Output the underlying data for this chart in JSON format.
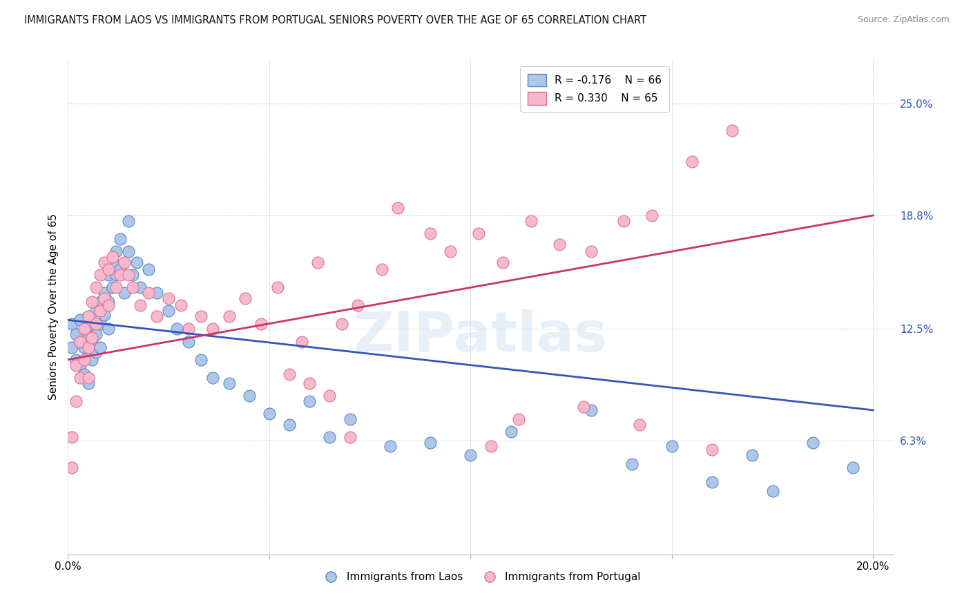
{
  "title": "IMMIGRANTS FROM LAOS VS IMMIGRANTS FROM PORTUGAL SENIORS POVERTY OVER THE AGE OF 65 CORRELATION CHART",
  "source": "Source: ZipAtlas.com",
  "ylabel": "Seniors Poverty Over the Age of 65",
  "ytick_labels": [
    "6.3%",
    "12.5%",
    "18.8%",
    "25.0%"
  ],
  "ytick_values": [
    0.063,
    0.125,
    0.188,
    0.25
  ],
  "xlim": [
    0.0,
    0.205
  ],
  "ylim": [
    0.0,
    0.275
  ],
  "legend_blue_r": "R = -0.176",
  "legend_blue_n": "N = 66",
  "legend_pink_r": "R = 0.330",
  "legend_pink_n": "N = 65",
  "label_blue": "Immigrants from Laos",
  "label_pink": "Immigrants from Portugal",
  "blue_color": "#aec6e8",
  "blue_edge": "#5588cc",
  "pink_color": "#f5b8cc",
  "pink_edge": "#e07090",
  "blue_line_color": "#3355bb",
  "pink_line_color": "#cc3366",
  "watermark": "ZIPatlas",
  "blue_points_x": [
    0.001,
    0.001,
    0.002,
    0.002,
    0.003,
    0.003,
    0.003,
    0.004,
    0.004,
    0.004,
    0.005,
    0.005,
    0.005,
    0.005,
    0.006,
    0.006,
    0.006,
    0.007,
    0.007,
    0.007,
    0.008,
    0.008,
    0.008,
    0.009,
    0.009,
    0.01,
    0.01,
    0.01,
    0.011,
    0.011,
    0.012,
    0.012,
    0.013,
    0.013,
    0.014,
    0.015,
    0.015,
    0.016,
    0.017,
    0.018,
    0.02,
    0.022,
    0.025,
    0.027,
    0.03,
    0.033,
    0.036,
    0.04,
    0.045,
    0.05,
    0.055,
    0.06,
    0.065,
    0.07,
    0.08,
    0.09,
    0.1,
    0.11,
    0.13,
    0.14,
    0.15,
    0.16,
    0.17,
    0.175,
    0.185,
    0.195
  ],
  "blue_points_y": [
    0.128,
    0.115,
    0.122,
    0.108,
    0.13,
    0.118,
    0.105,
    0.125,
    0.115,
    0.1,
    0.132,
    0.12,
    0.11,
    0.095,
    0.128,
    0.118,
    0.108,
    0.135,
    0.122,
    0.112,
    0.14,
    0.128,
    0.115,
    0.145,
    0.133,
    0.155,
    0.14,
    0.125,
    0.162,
    0.148,
    0.168,
    0.155,
    0.175,
    0.158,
    0.145,
    0.185,
    0.168,
    0.155,
    0.162,
    0.148,
    0.158,
    0.145,
    0.135,
    0.125,
    0.118,
    0.108,
    0.098,
    0.095,
    0.088,
    0.078,
    0.072,
    0.085,
    0.065,
    0.075,
    0.06,
    0.062,
    0.055,
    0.068,
    0.08,
    0.05,
    0.06,
    0.04,
    0.055,
    0.035,
    0.062,
    0.048
  ],
  "pink_points_x": [
    0.001,
    0.001,
    0.002,
    0.002,
    0.003,
    0.003,
    0.004,
    0.004,
    0.005,
    0.005,
    0.005,
    0.006,
    0.006,
    0.007,
    0.007,
    0.008,
    0.008,
    0.009,
    0.009,
    0.01,
    0.01,
    0.011,
    0.012,
    0.013,
    0.014,
    0.015,
    0.016,
    0.018,
    0.02,
    0.022,
    0.025,
    0.028,
    0.03,
    0.033,
    0.036,
    0.04,
    0.044,
    0.048,
    0.052,
    0.058,
    0.062,
    0.068,
    0.072,
    0.078,
    0.082,
    0.09,
    0.095,
    0.102,
    0.108,
    0.115,
    0.122,
    0.13,
    0.138,
    0.145,
    0.155,
    0.165,
    0.055,
    0.06,
    0.065,
    0.07,
    0.105,
    0.112,
    0.128,
    0.142,
    0.16
  ],
  "pink_points_y": [
    0.065,
    0.048,
    0.105,
    0.085,
    0.118,
    0.098,
    0.125,
    0.108,
    0.132,
    0.115,
    0.098,
    0.14,
    0.12,
    0.148,
    0.128,
    0.155,
    0.135,
    0.162,
    0.142,
    0.158,
    0.138,
    0.165,
    0.148,
    0.155,
    0.162,
    0.155,
    0.148,
    0.138,
    0.145,
    0.132,
    0.142,
    0.138,
    0.125,
    0.132,
    0.125,
    0.132,
    0.142,
    0.128,
    0.148,
    0.118,
    0.162,
    0.128,
    0.138,
    0.158,
    0.192,
    0.178,
    0.168,
    0.178,
    0.162,
    0.185,
    0.172,
    0.168,
    0.185,
    0.188,
    0.218,
    0.235,
    0.1,
    0.095,
    0.088,
    0.065,
    0.06,
    0.075,
    0.082,
    0.072,
    0.058
  ]
}
